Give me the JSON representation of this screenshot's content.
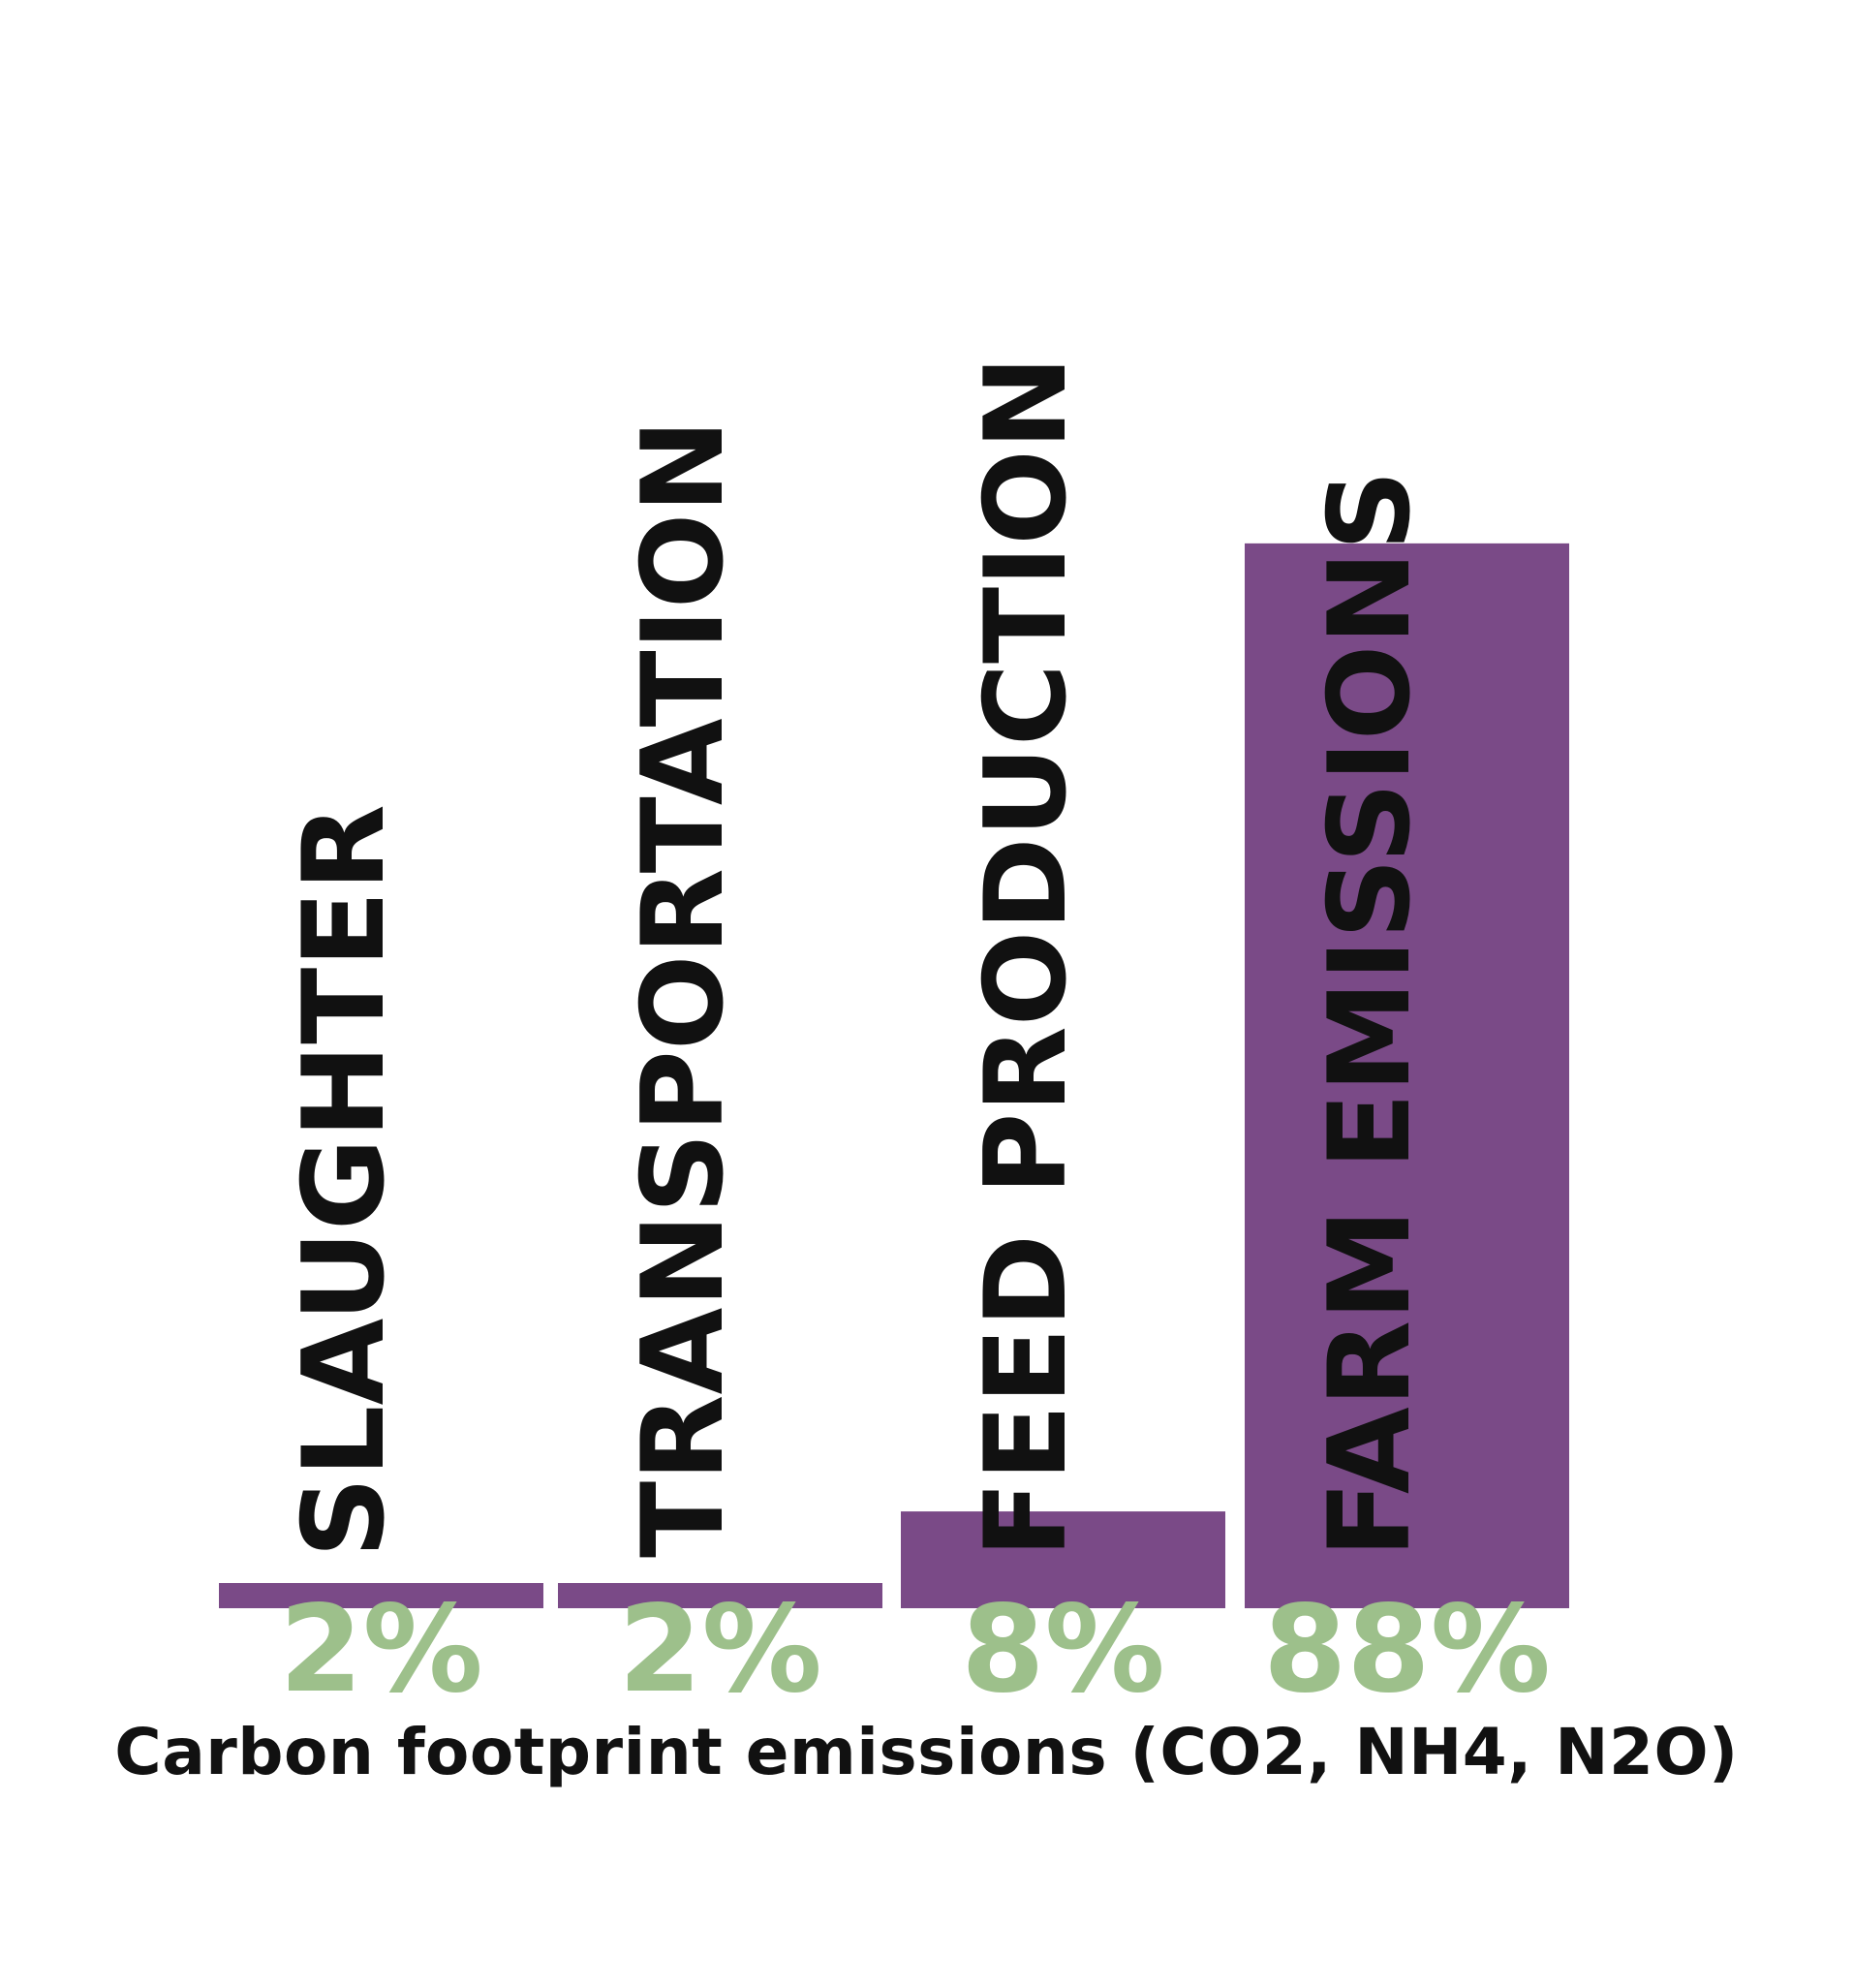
{
  "chart_data": {
    "type": "bar",
    "title": "Carbon footprint emissions (CO2, NH4, N2O)",
    "categories": [
      "SLAUGHTER",
      "TRANSPORTATION",
      "FEED PRODUCTION",
      "FARM EMISSIONS"
    ],
    "values": [
      2,
      2,
      8,
      88
    ],
    "data_labels": [
      "2%",
      "2%",
      "8%",
      "88%"
    ],
    "unit": "%",
    "ylim": [
      0,
      100
    ],
    "grid": false,
    "legend": "none",
    "colors": {
      "bar": "#7a4a87",
      "value_label": "#9dc08b",
      "category_label": "#111111"
    }
  }
}
